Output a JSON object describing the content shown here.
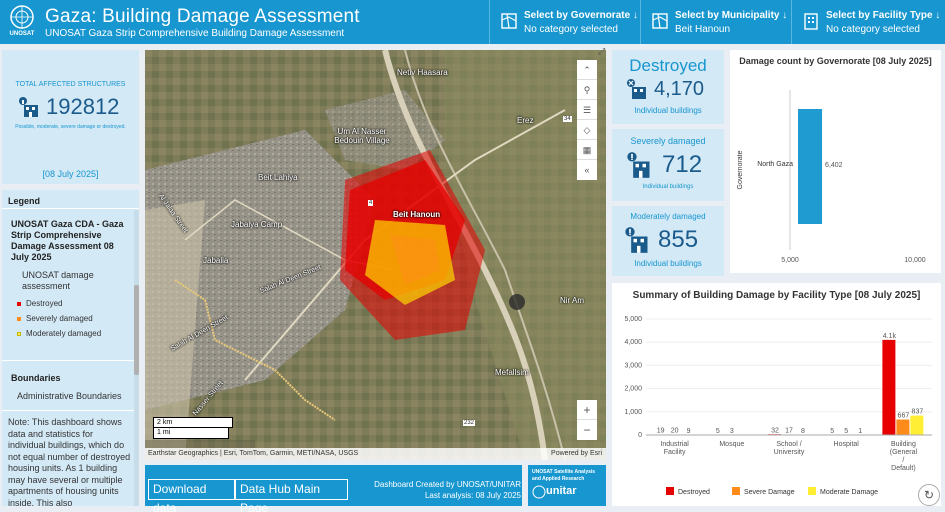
{
  "header": {
    "logo_text": "UNOSAT",
    "title": "Gaza: Building Damage Assessment",
    "subtitle": "UNOSAT Gaza Strip Comprehensive Building Damage Assessment",
    "selectors": [
      {
        "label": "Select by Governorate ↓",
        "value": "No category selected",
        "icon": "map-grid-icon"
      },
      {
        "label": "Select by Municipality ↓",
        "value": "Beit Hanoun",
        "icon": "map-grid-icon"
      },
      {
        "label": "Select by Facility Type ↓",
        "value": "No category selected",
        "icon": "building-icon"
      }
    ]
  },
  "total": {
    "label": "TOTAL AFFECTED STRUCTURES",
    "value": "192812",
    "note": "Possible, moderate, severe damage or destroyed.",
    "date": "[08 July 2025]"
  },
  "legend": {
    "heading": "Legend",
    "title": "UNOSAT Gaza CDA - Gaza Strip Comprehensive Damage Assessment 08 July 2025",
    "sub": "UNOSAT damage assessment",
    "items": [
      {
        "label": "Destroyed",
        "color": "#e60000"
      },
      {
        "label": "Severely damaged",
        "color": "#ff8c1a"
      },
      {
        "label": "Moderately damaged",
        "color": "#ffee66"
      }
    ],
    "boundaries_heading": "Boundaries",
    "boundaries_item": "Administrative Boundaries",
    "note": "Note: This dashboard shows data and statistics for individual buildings, which do not equal number of destroyed housing units. As 1 building may have several or multiple apartments of housing units inside. This also"
  },
  "map": {
    "places": [
      "Netiv Haasara",
      "Erez",
      "Um Al Nasser Bedouin Village",
      "Beit Lahiya",
      "Beit Hanoun",
      "Jabalya Camp",
      "Jabalia",
      "Nir Am",
      "Mefallsim"
    ],
    "roads": [
      "Salah Al Deen Street",
      "Salah Al Deen Street",
      "Al Jalaa Street",
      "Nasser Street"
    ],
    "road_numbers": [
      "4",
      "34",
      "232"
    ],
    "scale_km": "2 km",
    "scale_mi": "1 mi",
    "attribution": "Earthstar Geographics | Esri, TomTom, Garmin, METI/NASA, USGS",
    "powered": "Powered by Esri",
    "tools": [
      "expand-icon",
      "search-icon",
      "list-icon",
      "layers-icon",
      "grid-icon",
      "collapse-icon"
    ],
    "zoom_in": "+",
    "zoom_out": "−"
  },
  "bottom": {
    "download": "Download data",
    "hub": "Data Hub Main Page",
    "credit1": "Dashboard Created by UNOSAT/UNITAR",
    "credit2": "Last analysis: 08 July 2025",
    "logo1": "unitar",
    "logo2": "UNOSAT Satellite Analysis and Applied Research"
  },
  "kpis": [
    {
      "title": "Destroyed",
      "value": "4,170",
      "sub": "Individual buildings"
    },
    {
      "title": "Severely damaged",
      "value": "712",
      "sub": "Individual buildings"
    },
    {
      "title": "Moderately damaged",
      "value": "855",
      "sub": "Individual buildings"
    }
  ],
  "colors": {
    "accent": "#1796cf",
    "destroyed": "#e60000",
    "severe": "#ff8c1a",
    "moderate": "#ffee33",
    "gov_bar": "#1f9bd1"
  },
  "chart_data": [
    {
      "type": "bar",
      "title": "Damage count by Governorate [08 July 2025]",
      "orientation": "horizontal",
      "categories": [
        "North Gaza"
      ],
      "values": [
        6402
      ],
      "value_labels": [
        "6,402"
      ],
      "ylabel": "Governorate",
      "xlim": [
        0,
        10000
      ],
      "ticks": [
        "5,000",
        "10,000"
      ]
    },
    {
      "type": "bar",
      "title": "Summary of Building Damage by Facility Type [08 July 2025]",
      "categories": [
        "Industrial Facility",
        "Mosque",
        "School / University",
        "Hospital",
        "Building (General / Default)"
      ],
      "series": [
        {
          "name": "Destroyed",
          "values": [
            19,
            5,
            32,
            5,
            4100
          ],
          "labels": [
            "19",
            "5",
            "32",
            "5",
            "4.1k"
          ]
        },
        {
          "name": "Severe Damage",
          "values": [
            20,
            3,
            17,
            5,
            667
          ],
          "labels": [
            "20",
            "3",
            "17",
            "5",
            "667"
          ]
        },
        {
          "name": "Moderate Damage",
          "values": [
            9,
            0,
            8,
            1,
            837
          ],
          "labels": [
            "9",
            "",
            "8",
            "1",
            "837"
          ]
        }
      ],
      "ylim": [
        0,
        5000
      ],
      "yticks": [
        "0",
        "1,000",
        "2,000",
        "3,000",
        "4,000",
        "5,000"
      ],
      "legend": "bottom"
    }
  ]
}
